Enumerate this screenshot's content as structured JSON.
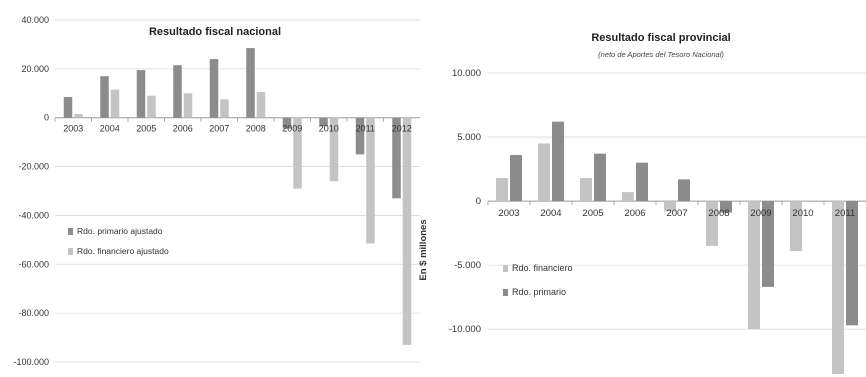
{
  "chart_data": [
    {
      "type": "bar",
      "title": "Resultado fiscal nacional",
      "subtitle": "",
      "xlabel": "",
      "ylabel": "",
      "categories": [
        "2003",
        "2004",
        "2005",
        "2006",
        "2007",
        "2008",
        "2009",
        "2010",
        "2011",
        "2012"
      ],
      "series": [
        {
          "name": "Rdo. primario ajustado",
          "color": "#8c8c8c",
          "values": [
            8500,
            17000,
            19500,
            21500,
            24000,
            28500,
            -4500,
            -3500,
            -15000,
            -33000
          ]
        },
        {
          "name": "Rdo. financiero ajustado",
          "color": "#c4c4c4",
          "values": [
            1500,
            11500,
            9000,
            10000,
            7500,
            10500,
            -29000,
            -26000,
            -51500,
            -93000
          ]
        }
      ],
      "yticks": [
        40000,
        20000,
        0,
        -20000,
        -40000,
        -60000,
        -80000,
        -100000
      ],
      "ytick_labels": [
        "40.000",
        "20.000",
        "0",
        "-20.000",
        "-40.000",
        "-60.000",
        "-80.000",
        "-100.000"
      ],
      "ylim": [
        -100000,
        40000
      ],
      "grid": true,
      "legend_position": "left",
      "legend_order": [
        0,
        1
      ]
    },
    {
      "type": "bar",
      "title": "Resultado fiscal provincial",
      "subtitle": "(neto de Aportes del Tesoro Nacional)",
      "xlabel": "",
      "ylabel": "En $ millones",
      "categories": [
        "2003",
        "2004",
        "2005",
        "2006",
        "2007",
        "2008",
        "2009",
        "2010",
        "2011"
      ],
      "series": [
        {
          "name": "Rdo. financiero",
          "color": "#c4c4c4",
          "values": [
            1800,
            4500,
            1800,
            700,
            -800,
            -3500,
            -10000,
            -3900,
            -13500
          ]
        },
        {
          "name": "Rdo. primario",
          "color": "#8c8c8c",
          "values": [
            3600,
            6200,
            3700,
            3000,
            1700,
            -900,
            -6700,
            0,
            -9700
          ]
        }
      ],
      "yticks": [
        10000,
        5000,
        0,
        -5000,
        -10000
      ],
      "ytick_labels": [
        "10.000",
        "5.000",
        "0",
        "-5.000",
        "-10.000"
      ],
      "ylim": [
        -13500,
        10000
      ],
      "grid": true,
      "legend_position": "left",
      "legend_order": [
        0,
        1
      ]
    }
  ]
}
